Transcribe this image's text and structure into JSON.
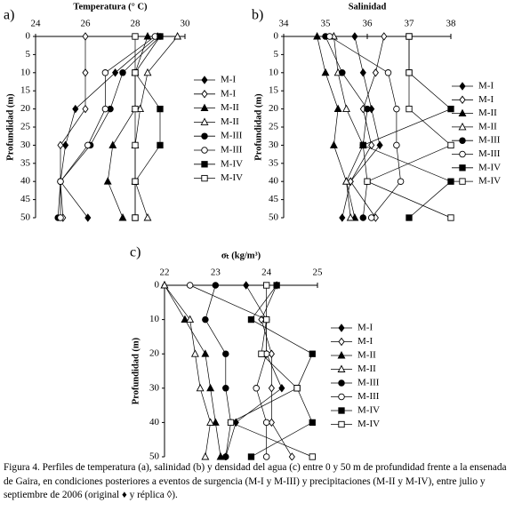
{
  "chart_data": [
    {
      "type": "line",
      "label": "a)",
      "title": "Temperatura (° C)",
      "ylabel": "Profundidad (m)",
      "xlim": [
        24,
        30
      ],
      "xticks": [
        24,
        26,
        28,
        30
      ],
      "ylim": [
        0,
        50
      ],
      "yticks": [
        0,
        5,
        10,
        15,
        20,
        25,
        30,
        35,
        40,
        45,
        50
      ],
      "y": [
        0,
        10,
        20,
        30,
        40,
        50
      ],
      "series": [
        {
          "name": "M-I",
          "color": "#000000",
          "marker": "diamond",
          "filled": true,
          "values": [
            28.9,
            27.2,
            25.6,
            25.2,
            25.0,
            26.1
          ]
        },
        {
          "name": "M-I",
          "color": "#000000",
          "marker": "diamond",
          "filled": false,
          "values": [
            26.0,
            26.0,
            26.0,
            25.0,
            25.0,
            25.1
          ]
        },
        {
          "name": "M-II",
          "color": "#000000",
          "marker": "triangle",
          "filled": true,
          "values": [
            28.5,
            28.0,
            28.0,
            27.1,
            26.9,
            27.5
          ]
        },
        {
          "name": "M-II",
          "color": "#000000",
          "marker": "triangle",
          "filled": false,
          "values": [
            29.7,
            28.5,
            28.2,
            28.0,
            28.0,
            28.5
          ]
        },
        {
          "name": "M-III",
          "color": "#000000",
          "marker": "circle",
          "filled": true,
          "values": [
            29.0,
            27.5,
            27.0,
            26.2,
            25.0,
            24.9
          ]
        },
        {
          "name": "M-III",
          "color": "#000000",
          "marker": "circle",
          "filled": false,
          "values": [
            28.8,
            26.8,
            26.8,
            26.1,
            25.0,
            25.0
          ]
        },
        {
          "name": "M-IV",
          "color": "#000000",
          "marker": "square",
          "filled": true,
          "values": [
            29.0,
            28.0,
            29.0,
            29.0,
            28.0,
            28.0
          ]
        },
        {
          "name": "M-IV",
          "color": "#000000",
          "marker": "square",
          "filled": false,
          "values": [
            28.0,
            28.0,
            28.0,
            28.0,
            28.0,
            28.0
          ]
        }
      ]
    },
    {
      "type": "line",
      "label": "b)",
      "title": "Salinidad",
      "ylabel": "Profundidad (m)",
      "xlim": [
        34,
        38
      ],
      "xticks": [
        34,
        35,
        36,
        37,
        38
      ],
      "ylim": [
        0,
        50
      ],
      "yticks": [
        0,
        5,
        10,
        15,
        20,
        25,
        30,
        35,
        40,
        45,
        50
      ],
      "y": [
        0,
        10,
        20,
        30,
        40,
        50
      ],
      "series": [
        {
          "name": "M-I",
          "color": "#000000",
          "marker": "diamond",
          "filled": true,
          "values": [
            35.7,
            35.9,
            36.1,
            36.3,
            35.6,
            35.4
          ]
        },
        {
          "name": "M-I",
          "color": "#000000",
          "marker": "diamond",
          "filled": false,
          "values": [
            36.4,
            36.2,
            35.9,
            36.1,
            35.6,
            36.2
          ]
        },
        {
          "name": "M-II",
          "color": "#000000",
          "marker": "triangle",
          "filled": true,
          "values": [
            34.8,
            35.0,
            35.3,
            35.2,
            35.5,
            35.7
          ]
        },
        {
          "name": "M-II",
          "color": "#000000",
          "marker": "triangle",
          "filled": false,
          "values": [
            35.2,
            35.3,
            35.5,
            35.9,
            35.5,
            35.6
          ]
        },
        {
          "name": "M-III",
          "color": "#000000",
          "marker": "circle",
          "filled": true,
          "values": [
            35.0,
            35.4,
            36.0,
            35.9,
            36.0,
            35.9
          ]
        },
        {
          "name": "M-III",
          "color": "#000000",
          "marker": "circle",
          "filled": false,
          "values": [
            35.1,
            36.5,
            36.7,
            36.7,
            36.8,
            36.1
          ]
        },
        {
          "name": "M-IV",
          "color": "#000000",
          "marker": "square",
          "filled": true,
          "values": [
            37.0,
            37.0,
            38.0,
            35.9,
            38.0,
            37.0
          ]
        },
        {
          "name": "M-IV",
          "color": "#000000",
          "marker": "square",
          "filled": false,
          "values": [
            37.0,
            37.0,
            37.0,
            38.0,
            36.0,
            38.0
          ]
        }
      ]
    },
    {
      "type": "line",
      "label": "c)",
      "title": "σₜ (kg/m³)",
      "ylabel": "Profundidad (m)",
      "xlim": [
        22,
        25
      ],
      "xticks": [
        22,
        23,
        24,
        25
      ],
      "ylim": [
        0,
        50
      ],
      "yticks": [
        0,
        10,
        20,
        30,
        40,
        50
      ],
      "y": [
        0,
        10,
        20,
        30,
        40,
        50
      ],
      "series": [
        {
          "name": "M-I",
          "color": "#000000",
          "marker": "diamond",
          "filled": true,
          "values": [
            23.6,
            24.0,
            24.0,
            24.3,
            23.4,
            23.2
          ]
        },
        {
          "name": "M-I",
          "color": "#000000",
          "marker": "diamond",
          "filled": false,
          "values": [
            24.2,
            23.9,
            24.1,
            24.1,
            24.1,
            24.5
          ]
        },
        {
          "name": "M-II",
          "color": "#000000",
          "marker": "triangle",
          "filled": true,
          "values": [
            22.0,
            22.4,
            22.8,
            22.9,
            23.0,
            23.1
          ]
        },
        {
          "name": "M-II",
          "color": "#000000",
          "marker": "triangle",
          "filled": false,
          "values": [
            22.0,
            22.5,
            22.6,
            22.7,
            22.9,
            22.8
          ]
        },
        {
          "name": "M-III",
          "color": "#000000",
          "marker": "circle",
          "filled": true,
          "values": [
            23.0,
            22.8,
            23.2,
            23.2,
            23.3,
            23.2
          ]
        },
        {
          "name": "M-III",
          "color": "#000000",
          "marker": "circle",
          "filled": false,
          "values": [
            22.5,
            24.0,
            24.0,
            23.8,
            24.0,
            24.0
          ]
        },
        {
          "name": "M-IV",
          "color": "#000000",
          "marker": "square",
          "filled": true,
          "values": [
            24.2,
            23.7,
            24.9,
            24.6,
            24.9,
            23.7
          ]
        },
        {
          "name": "M-IV",
          "color": "#000000",
          "marker": "square",
          "filled": false,
          "values": [
            24.0,
            24.0,
            23.9,
            24.6,
            23.3,
            24.9
          ]
        }
      ]
    }
  ],
  "caption": "Figura 4. Perfiles de temperatura (a), salinidad (b) y densidad del agua (c) entre 0 y 50 m de profundidad frente a la ensenada de Gaira, en condiciones posteriores a eventos de surgencia (M-I y M-III) y precipitaciones (M-II y M-IV), entre julio y septiembre de 2006 (original ♦ y réplica ◊)."
}
